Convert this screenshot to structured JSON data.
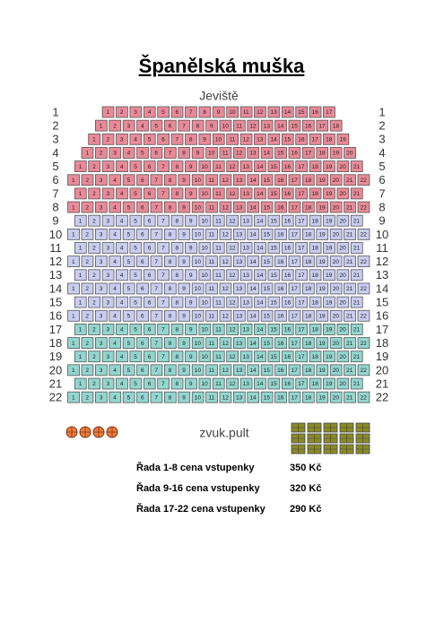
{
  "title": "Španělská muška",
  "stage": "Jeviště",
  "sound_desk": "zvuk.pult",
  "rows": [
    {
      "label": "1",
      "color": "#ea8a98",
      "seats": [
        1,
        2,
        3,
        4,
        5,
        6,
        7,
        8,
        9,
        10,
        11,
        12,
        13,
        14,
        15,
        16,
        17
      ]
    },
    {
      "label": "2",
      "color": "#ea8a98",
      "seats": [
        1,
        2,
        3,
        4,
        5,
        6,
        7,
        8,
        9,
        10,
        11,
        12,
        13,
        14,
        15,
        16,
        17,
        18
      ]
    },
    {
      "label": "3",
      "color": "#ea8a98",
      "seats": [
        1,
        2,
        3,
        4,
        5,
        6,
        7,
        8,
        9,
        10,
        11,
        12,
        13,
        14,
        15,
        16,
        17,
        18,
        19
      ]
    },
    {
      "label": "4",
      "color": "#ea8a98",
      "seats": [
        1,
        2,
        3,
        4,
        5,
        6,
        7,
        8,
        9,
        10,
        11,
        12,
        13,
        14,
        15,
        16,
        17,
        18,
        19,
        20
      ]
    },
    {
      "label": "5",
      "color": "#ea8a98",
      "seats": [
        1,
        2,
        3,
        4,
        5,
        6,
        7,
        8,
        9,
        10,
        11,
        12,
        13,
        14,
        15,
        16,
        17,
        18,
        19,
        20,
        21
      ]
    },
    {
      "label": "6",
      "color": "#ea8a98",
      "seats": [
        1,
        2,
        3,
        4,
        5,
        6,
        7,
        8,
        9,
        10,
        11,
        12,
        13,
        14,
        15,
        16,
        17,
        18,
        19,
        20,
        21,
        22
      ]
    },
    {
      "label": "7",
      "color": "#ea8a98",
      "seats": [
        1,
        2,
        3,
        4,
        5,
        6,
        7,
        8,
        9,
        10,
        11,
        12,
        13,
        14,
        15,
        16,
        17,
        18,
        19,
        20,
        21
      ]
    },
    {
      "label": "8",
      "color": "#ea8a98",
      "seats": [
        1,
        2,
        3,
        4,
        5,
        6,
        7,
        8,
        9,
        10,
        11,
        12,
        13,
        14,
        15,
        16,
        17,
        18,
        19,
        20,
        21,
        22
      ]
    },
    {
      "label": "9",
      "color": "#c9cdf0",
      "seats": [
        1,
        2,
        3,
        4,
        5,
        6,
        7,
        8,
        9,
        10,
        11,
        12,
        13,
        14,
        15,
        16,
        17,
        18,
        19,
        20,
        21
      ]
    },
    {
      "label": "10",
      "color": "#c9cdf0",
      "seats": [
        1,
        2,
        3,
        4,
        5,
        6,
        7,
        8,
        9,
        10,
        11,
        12,
        13,
        14,
        15,
        16,
        17,
        18,
        19,
        20,
        21,
        22
      ]
    },
    {
      "label": "11",
      "color": "#c9cdf0",
      "seats": [
        1,
        2,
        3,
        4,
        5,
        6,
        7,
        8,
        9,
        10,
        11,
        12,
        13,
        14,
        15,
        16,
        17,
        18,
        19,
        20,
        21
      ]
    },
    {
      "label": "12",
      "color": "#c9cdf0",
      "seats": [
        1,
        2,
        3,
        4,
        5,
        6,
        7,
        8,
        9,
        10,
        11,
        12,
        13,
        14,
        15,
        16,
        17,
        18,
        19,
        20,
        21,
        22
      ]
    },
    {
      "label": "13",
      "color": "#c9cdf0",
      "seats": [
        1,
        2,
        3,
        4,
        5,
        6,
        7,
        8,
        9,
        10,
        11,
        12,
        13,
        14,
        15,
        16,
        17,
        18,
        19,
        20,
        21
      ]
    },
    {
      "label": "14",
      "color": "#c9cdf0",
      "seats": [
        1,
        2,
        3,
        4,
        5,
        6,
        7,
        8,
        9,
        10,
        11,
        12,
        13,
        14,
        15,
        16,
        17,
        18,
        19,
        20,
        21,
        22
      ]
    },
    {
      "label": "15",
      "color": "#c9cdf0",
      "seats": [
        1,
        2,
        3,
        4,
        5,
        6,
        7,
        8,
        9,
        10,
        11,
        12,
        13,
        14,
        15,
        16,
        17,
        18,
        19,
        20,
        21
      ]
    },
    {
      "label": "16",
      "color": "#c9cdf0",
      "seats": [
        1,
        2,
        3,
        4,
        5,
        6,
        7,
        8,
        9,
        10,
        11,
        12,
        13,
        14,
        15,
        16,
        17,
        18,
        19,
        20,
        21,
        22
      ]
    },
    {
      "label": "17",
      "color": "#93d6cf",
      "seats": [
        1,
        2,
        3,
        4,
        5,
        6,
        7,
        8,
        9,
        10,
        11,
        12,
        13,
        14,
        15,
        16,
        17,
        18,
        19,
        20,
        21
      ]
    },
    {
      "label": "18",
      "color": "#93d6cf",
      "seats": [
        1,
        2,
        3,
        4,
        5,
        6,
        7,
        8,
        9,
        10,
        11,
        12,
        13,
        14,
        15,
        16,
        17,
        18,
        19,
        20,
        21,
        22
      ]
    },
    {
      "label": "19",
      "color": "#93d6cf",
      "seats": [
        1,
        2,
        3,
        4,
        5,
        6,
        7,
        8,
        9,
        10,
        11,
        12,
        13,
        14,
        15,
        16,
        17,
        18,
        19,
        20,
        21
      ]
    },
    {
      "label": "20",
      "color": "#93d6cf",
      "seats": [
        1,
        2,
        3,
        4,
        5,
        6,
        7,
        8,
        9,
        10,
        11,
        12,
        13,
        14,
        15,
        16,
        17,
        18,
        19,
        20,
        21,
        22
      ]
    },
    {
      "label": "21",
      "color": "#93d6cf",
      "seats": [
        1,
        2,
        3,
        4,
        5,
        6,
        7,
        8,
        9,
        10,
        11,
        12,
        13,
        14,
        15,
        16,
        17,
        18,
        19,
        20,
        21
      ]
    },
    {
      "label": "22",
      "color": "#93d6cf",
      "seats": [
        1,
        2,
        3,
        4,
        5,
        6,
        7,
        8,
        9,
        10,
        11,
        12,
        13,
        14,
        15,
        16,
        17,
        18,
        19,
        20,
        21,
        22
      ]
    }
  ],
  "prices": [
    {
      "label": "Řada 1-8 cena vstupenky",
      "price": "350 Kč"
    },
    {
      "label": "Řada 9-16 cena vstupenky",
      "price": "320 Kč"
    },
    {
      "label": "Řada 17-22 cena vstupenky",
      "price": "290 Kč"
    }
  ]
}
